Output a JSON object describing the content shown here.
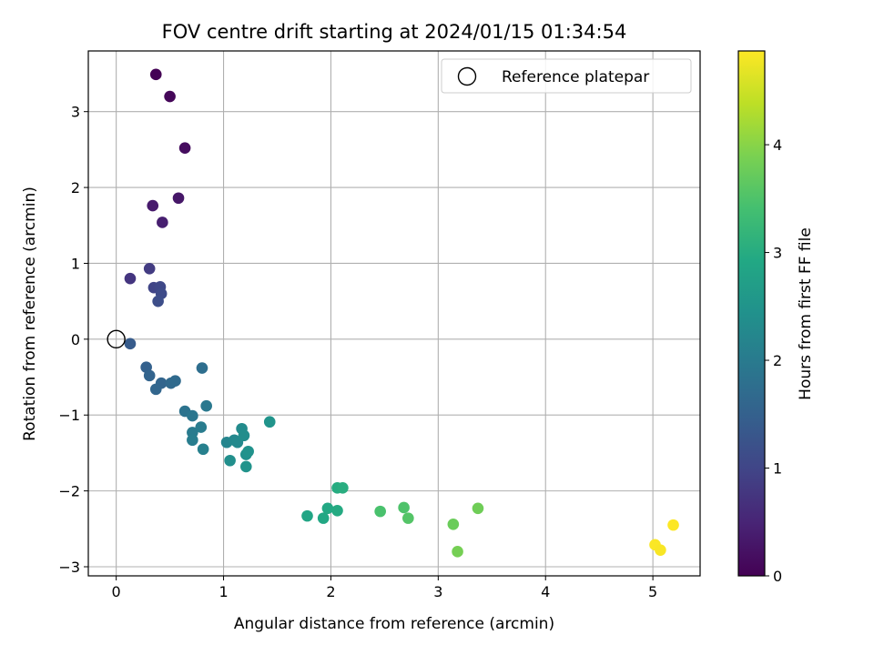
{
  "chart_data": {
    "type": "scatter",
    "title": "FOV centre drift starting at 2024/01/15 01:34:54",
    "xlabel": "Angular distance from reference (arcmin)",
    "ylabel": "Rotation from reference (arcmin)",
    "xlim": [
      -0.26,
      5.44
    ],
    "ylim": [
      -3.12,
      3.8
    ],
    "xticks": [
      0,
      1,
      2,
      3,
      4,
      5
    ],
    "yticks": [
      -3,
      -2,
      -1,
      0,
      1,
      2,
      3
    ],
    "xtick_labels": [
      "0",
      "1",
      "2",
      "3",
      "4",
      "5"
    ],
    "ytick_labels": [
      "−3",
      "−2",
      "−1",
      "0",
      "1",
      "2",
      "3"
    ],
    "grid": true,
    "legend": {
      "position": "top-right",
      "entries": [
        {
          "label": "Reference platepar",
          "marker": "hollow-circle",
          "x": 0,
          "y": 0
        }
      ]
    },
    "colorbar": {
      "label": "Hours from first FF file",
      "colormap": "viridis",
      "range": [
        0,
        4.87
      ],
      "ticks": [
        0,
        1,
        2,
        3,
        4
      ],
      "tick_labels": [
        "0",
        "1",
        "2",
        "3",
        "4"
      ]
    },
    "series": [
      {
        "points": [
          {
            "x": 0.37,
            "y": 3.49,
            "hours": 0.02
          },
          {
            "x": 0.5,
            "y": 3.2,
            "hours": 0.08
          },
          {
            "x": 0.64,
            "y": 2.52,
            "hours": 0.15
          },
          {
            "x": 0.58,
            "y": 1.86,
            "hours": 0.3
          },
          {
            "x": 0.34,
            "y": 1.76,
            "hours": 0.35
          },
          {
            "x": 0.43,
            "y": 1.54,
            "hours": 0.42
          },
          {
            "x": 0.13,
            "y": 0.8,
            "hours": 0.75
          },
          {
            "x": 0.31,
            "y": 0.93,
            "hours": 0.85
          },
          {
            "x": 0.35,
            "y": 0.68,
            "hours": 1.0
          },
          {
            "x": 0.41,
            "y": 0.69,
            "hours": 1.05
          },
          {
            "x": 0.42,
            "y": 0.6,
            "hours": 1.1
          },
          {
            "x": 0.39,
            "y": 0.5,
            "hours": 1.15
          },
          {
            "x": 0.13,
            "y": -0.06,
            "hours": 1.4
          },
          {
            "x": 0.28,
            "y": -0.37,
            "hours": 1.5
          },
          {
            "x": 0.31,
            "y": -0.48,
            "hours": 1.55
          },
          {
            "x": 0.42,
            "y": -0.58,
            "hours": 1.58
          },
          {
            "x": 0.37,
            "y": -0.66,
            "hours": 1.6
          },
          {
            "x": 0.51,
            "y": -0.58,
            "hours": 1.65
          },
          {
            "x": 0.55,
            "y": -0.55,
            "hours": 1.68
          },
          {
            "x": 0.8,
            "y": -0.38,
            "hours": 1.75
          },
          {
            "x": 0.64,
            "y": -0.95,
            "hours": 1.85
          },
          {
            "x": 0.71,
            "y": -1.01,
            "hours": 1.9
          },
          {
            "x": 0.84,
            "y": -0.88,
            "hours": 1.95
          },
          {
            "x": 0.71,
            "y": -1.23,
            "hours": 2.0
          },
          {
            "x": 0.79,
            "y": -1.16,
            "hours": 2.02
          },
          {
            "x": 0.71,
            "y": -1.33,
            "hours": 2.05
          },
          {
            "x": 0.81,
            "y": -1.45,
            "hours": 2.1
          },
          {
            "x": 1.03,
            "y": -1.36,
            "hours": 2.2
          },
          {
            "x": 1.1,
            "y": -1.33,
            "hours": 2.25
          },
          {
            "x": 1.13,
            "y": -1.36,
            "hours": 2.28
          },
          {
            "x": 1.17,
            "y": -1.18,
            "hours": 2.32
          },
          {
            "x": 1.19,
            "y": -1.27,
            "hours": 2.35
          },
          {
            "x": 1.06,
            "y": -1.6,
            "hours": 2.4
          },
          {
            "x": 1.21,
            "y": -1.52,
            "hours": 2.42
          },
          {
            "x": 1.23,
            "y": -1.48,
            "hours": 2.45
          },
          {
            "x": 1.21,
            "y": -1.68,
            "hours": 2.48
          },
          {
            "x": 1.43,
            "y": -1.09,
            "hours": 2.5
          },
          {
            "x": 1.78,
            "y": -2.33,
            "hours": 2.85
          },
          {
            "x": 1.93,
            "y": -2.36,
            "hours": 2.9
          },
          {
            "x": 1.97,
            "y": -2.23,
            "hours": 2.93
          },
          {
            "x": 2.06,
            "y": -2.26,
            "hours": 2.96
          },
          {
            "x": 2.06,
            "y": -1.96,
            "hours": 3.0
          },
          {
            "x": 2.11,
            "y": -1.96,
            "hours": 3.03
          },
          {
            "x": 2.46,
            "y": -2.27,
            "hours": 3.45
          },
          {
            "x": 2.68,
            "y": -2.22,
            "hours": 3.5
          },
          {
            "x": 2.72,
            "y": -2.36,
            "hours": 3.55
          },
          {
            "x": 3.14,
            "y": -2.44,
            "hours": 3.75
          },
          {
            "x": 3.18,
            "y": -2.8,
            "hours": 3.85
          },
          {
            "x": 3.37,
            "y": -2.23,
            "hours": 3.8
          },
          {
            "x": 5.02,
            "y": -2.71,
            "hours": 4.85
          },
          {
            "x": 5.07,
            "y": -2.78,
            "hours": 4.83
          },
          {
            "x": 5.19,
            "y": -2.45,
            "hours": 4.86
          }
        ]
      }
    ]
  }
}
